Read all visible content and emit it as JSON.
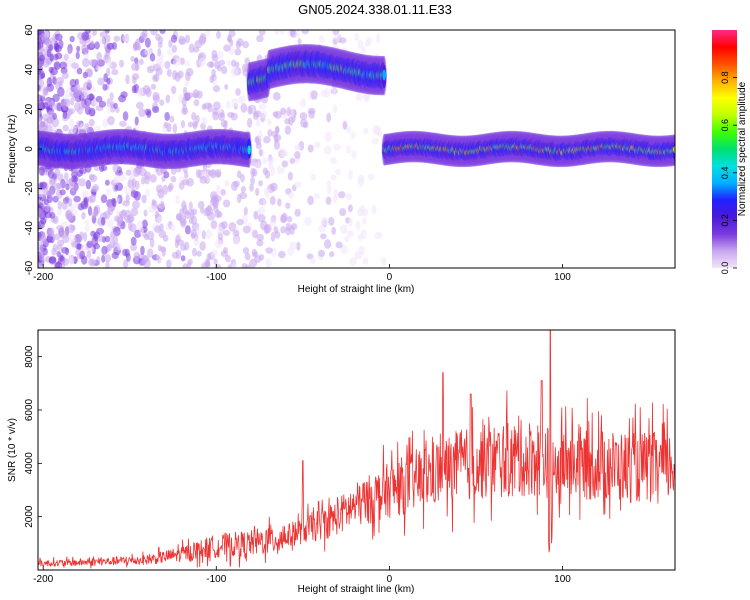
{
  "title": "GN05.2024.338.01.11.E33",
  "chart_data": [
    {
      "type": "heatmap",
      "xlabel": "Height of straight line (km)",
      "ylabel": "Frequency (Hz)",
      "xlim": [
        -203,
        165
      ],
      "ylim": [
        -60,
        60
      ],
      "x_ticks": [
        "-200",
        "-100",
        "0",
        "100"
      ],
      "y_ticks": [
        "60",
        "40",
        "20",
        "0",
        "-20",
        "-40",
        "-60"
      ],
      "colorbar": {
        "label": "Normalized spectral amplitude",
        "range": [
          0,
          1
        ],
        "ticks": [
          "0.0",
          "0.2",
          "0.4",
          "0.6",
          "0.8"
        ],
        "colors": [
          "#f2e6fb",
          "#c9a6f0",
          "#7a3ae0",
          "#4a1ad8",
          "#2020ff",
          "#00b0ff",
          "#00e0e0",
          "#00e070",
          "#40ff00",
          "#c0ff00",
          "#ffff00",
          "#ffb000",
          "#ff5000",
          "#ff0000",
          "#ff2a8a"
        ]
      },
      "bands": [
        {
          "x_start": -203,
          "x_end": -81,
          "center_hz": 0,
          "amplitude": 0.5
        },
        {
          "x_start": -81,
          "x_end": -3,
          "center_hz": 40,
          "amplitude": 0.65
        },
        {
          "x_start": -3,
          "x_end": 165,
          "center_hz": 0,
          "amplitude": 0.85
        }
      ],
      "grid": false
    },
    {
      "type": "line",
      "xlabel": "Height of straight line (km)",
      "ylabel": "SNR (10 * v/v)",
      "xlim": [
        -203,
        165
      ],
      "ylim": [
        0,
        9000
      ],
      "x_ticks": [
        "-200",
        "-100",
        "0",
        "100"
      ],
      "y_ticks": [
        "8000",
        "6000",
        "4000",
        "2000"
      ],
      "series_color": "#ee3333",
      "x": [
        -200,
        -180,
        -160,
        -140,
        -120,
        -100,
        -80,
        -60,
        -50,
        -40,
        -30,
        -20,
        -10,
        0,
        10,
        20,
        30,
        40,
        50,
        60,
        70,
        80,
        90,
        95,
        100,
        110,
        120,
        130,
        140,
        150,
        165
      ],
      "y": [
        250,
        280,
        330,
        380,
        600,
        900,
        1000,
        1250,
        1500,
        1700,
        2000,
        2400,
        2700,
        3000,
        3200,
        3500,
        3700,
        3900,
        4000,
        4100,
        4150,
        4200,
        4250,
        3500,
        4100,
        4000,
        3950,
        3900,
        3850,
        3850,
        3900
      ],
      "peaks": [
        {
          "x": 93,
          "y": 9000
        },
        {
          "x": 31,
          "y": 7400
        },
        {
          "x": 47,
          "y": 6600
        },
        {
          "x": 88,
          "y": 7100
        },
        {
          "x": -50,
          "y": 4100
        }
      ],
      "grid": false
    }
  ]
}
